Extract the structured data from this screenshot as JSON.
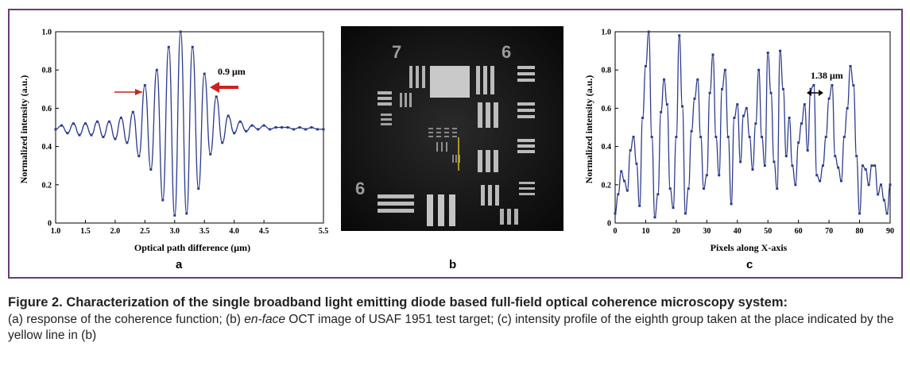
{
  "figure": {
    "panel_letters": {
      "a": "a",
      "b": "b",
      "c": "c"
    }
  },
  "caption": {
    "title": "Figure 2. Characterization of the single broadband light emitting diode based full-field optical coherence microscopy system:",
    "body_1": "(a) response of the coherence function; (b) ",
    "body_italic": "en-face",
    "body_2": " OCT image of USAF 1951 test target; (c) intensity profile of the eighth group taken at the place indicated by the yellow line in (b)"
  },
  "chart_data": [
    {
      "type": "line",
      "xlabel": "Optical path difference (μm)",
      "ylabel": "Normalized intensity (a.u.)",
      "xlim": [
        1.0,
        5.5
      ],
      "ylim": [
        0,
        1.0
      ],
      "x_ticks": [
        "1.0",
        "1.5",
        "2.0",
        "2.5",
        "3.0",
        "3.5",
        "4.0",
        "4.5",
        "5.5"
      ],
      "x_tick_values": [
        1.0,
        1.5,
        2.0,
        2.5,
        3.0,
        3.5,
        4.0,
        4.5,
        5.5
      ],
      "y_ticks": [
        "0",
        "0.2",
        "0.4",
        "0.6",
        "0.8",
        "1.0"
      ],
      "y_tick_values": [
        0,
        0.2,
        0.4,
        0.6,
        0.8,
        1.0
      ],
      "series": [
        {
          "x": [
            1.0,
            1.1,
            1.2,
            1.3,
            1.4,
            1.5,
            1.6,
            1.7,
            1.8,
            1.9,
            2.0,
            2.1,
            2.2,
            2.3,
            2.4,
            2.5,
            2.6,
            2.7,
            2.8,
            2.9,
            3.0,
            3.1,
            3.2,
            3.3,
            3.4,
            3.5,
            3.6,
            3.7,
            3.8,
            3.9,
            4.0,
            4.1,
            4.2,
            4.3,
            4.4,
            4.5,
            4.6,
            4.7,
            4.8,
            4.9,
            5.0,
            5.1,
            5.2,
            5.3,
            5.4,
            5.5
          ],
          "y": [
            0.49,
            0.51,
            0.47,
            0.52,
            0.46,
            0.52,
            0.46,
            0.53,
            0.45,
            0.53,
            0.44,
            0.55,
            0.42,
            0.58,
            0.35,
            0.72,
            0.28,
            0.8,
            0.12,
            0.92,
            0.04,
            1.0,
            0.05,
            0.92,
            0.18,
            0.78,
            0.36,
            0.66,
            0.42,
            0.56,
            0.47,
            0.53,
            0.48,
            0.51,
            0.49,
            0.51,
            0.49,
            0.5,
            0.5,
            0.5,
            0.49,
            0.5,
            0.49,
            0.5,
            0.49,
            0.49
          ]
        }
      ],
      "annotations": [
        {
          "text": "0.9 μm",
          "color": "#cc2222"
        }
      ],
      "line_color": "#2c3c8c"
    },
    {
      "type": "line",
      "xlabel": "Pixels along X-axis",
      "ylabel": "Normalized intensity (a.u.)",
      "xlim": [
        0,
        90
      ],
      "ylim": [
        0,
        1.0
      ],
      "x_ticks": [
        "0",
        "10",
        "20",
        "30",
        "40",
        "50",
        "60",
        "70",
        "80",
        "90"
      ],
      "x_tick_values": [
        0,
        10,
        20,
        30,
        40,
        50,
        60,
        70,
        80,
        90
      ],
      "y_ticks": [
        "0",
        "0.2",
        "0.4",
        "0.6",
        "0.8",
        "1.0"
      ],
      "y_tick_values": [
        0,
        0.2,
        0.4,
        0.6,
        0.8,
        1.0
      ],
      "series": [
        {
          "x": [
            0,
            1,
            2,
            3,
            4,
            5,
            6,
            7,
            8,
            9,
            10,
            11,
            12,
            13,
            14,
            15,
            16,
            17,
            18,
            19,
            20,
            21,
            22,
            23,
            24,
            25,
            26,
            27,
            28,
            29,
            30,
            31,
            32,
            33,
            34,
            35,
            36,
            37,
            38,
            39,
            40,
            41,
            42,
            43,
            44,
            45,
            46,
            47,
            48,
            49,
            50,
            51,
            52,
            53,
            54,
            55,
            56,
            57,
            58,
            59,
            60,
            61,
            62,
            63,
            64,
            65,
            66,
            67,
            68,
            69,
            70,
            71,
            72,
            73,
            74,
            75,
            76,
            77,
            78,
            79,
            80,
            81,
            82,
            83,
            84,
            85,
            86,
            87,
            88,
            89,
            90
          ],
          "y": [
            0.05,
            0.15,
            0.27,
            0.22,
            0.17,
            0.38,
            0.45,
            0.31,
            0.09,
            0.55,
            0.82,
            1.0,
            0.45,
            0.03,
            0.15,
            0.58,
            0.75,
            0.62,
            0.18,
            0.08,
            0.45,
            0.98,
            0.61,
            0.05,
            0.18,
            0.48,
            0.65,
            0.75,
            0.45,
            0.18,
            0.25,
            0.68,
            0.88,
            0.45,
            0.25,
            0.7,
            0.8,
            0.45,
            0.1,
            0.55,
            0.62,
            0.32,
            0.56,
            0.6,
            0.45,
            0.28,
            0.52,
            0.8,
            0.45,
            0.3,
            0.89,
            0.68,
            0.32,
            0.18,
            0.9,
            0.7,
            0.35,
            0.55,
            0.3,
            0.2,
            0.42,
            0.52,
            0.62,
            0.38,
            0.7,
            0.72,
            0.25,
            0.22,
            0.3,
            0.45,
            0.65,
            0.72,
            0.35,
            0.29,
            0.22,
            0.45,
            0.6,
            0.82,
            0.72,
            0.35,
            0.05,
            0.3,
            0.28,
            0.2,
            0.3,
            0.3,
            0.15,
            0.2,
            0.12,
            0.05,
            0.2
          ]
        }
      ],
      "annotations": [
        {
          "text": "1.38 μm",
          "color": "#000000"
        }
      ],
      "line_color": "#2c3c8c"
    }
  ]
}
